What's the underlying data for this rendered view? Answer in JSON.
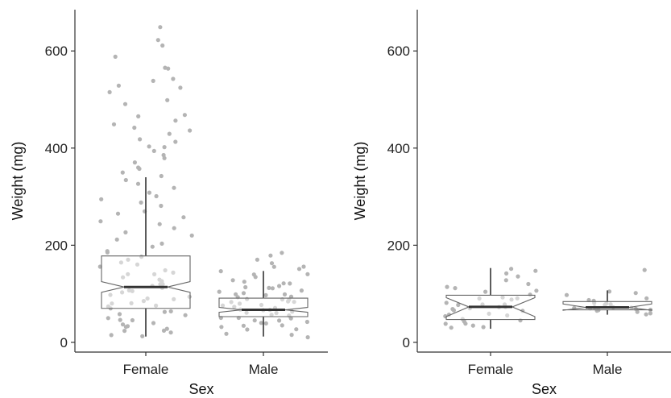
{
  "chart_data": [
    {
      "type": "box",
      "notched": true,
      "jittered_points": true,
      "xlabel": "Sex",
      "ylabel": "Weight (mg)",
      "ylim": [
        -20,
        685
      ],
      "yticks": [
        0,
        200,
        400,
        600
      ],
      "categories": [
        "Female",
        "Male"
      ],
      "boxes": [
        {
          "category": "Female",
          "q1": 70,
          "median": 114,
          "q3": 178,
          "notch_low": 103,
          "notch_high": 125,
          "whisker_low": 12,
          "whisker_high": 340
        },
        {
          "category": "Male",
          "q1": 53,
          "median": 67,
          "q3": 91,
          "notch_low": 62,
          "notch_high": 72,
          "whisker_low": 12,
          "whisker_high": 147
        }
      ],
      "points": {
        "Female": [
          648,
          625,
          612,
          590,
          567,
          563,
          541,
          537,
          530,
          526,
          515,
          498,
          490,
          470,
          465,
          455,
          448,
          442,
          436,
          428,
          420,
          412,
          405,
          400,
          392,
          385,
          378,
          370,
          362,
          355,
          348,
          340,
          333,
          325,
          318,
          310,
          302,
          295,
          288,
          280,
          272,
          265,
          258,
          250,
          243,
          236,
          228,
          220,
          212,
          205,
          198,
          190,
          184,
          178,
          172,
          166,
          160,
          155,
          150,
          146,
          142,
          138,
          134,
          130,
          126,
          122,
          118,
          115,
          112,
          108,
          105,
          102,
          98,
          95,
          92,
          88,
          85,
          82,
          78,
          75,
          72,
          68,
          65,
          62,
          58,
          55,
          52,
          48,
          45,
          42,
          38,
          35,
          32,
          28,
          25,
          22,
          18,
          15,
          12
        ],
        "Male": [
          185,
          178,
          170,
          162,
          158,
          155,
          150,
          146,
          142,
          138,
          134,
          130,
          127,
          124,
          121,
          118,
          115,
          112,
          110,
          108,
          105,
          103,
          101,
          99,
          97,
          95,
          93,
          91,
          89,
          87,
          85,
          83,
          81,
          79,
          77,
          75,
          73,
          71,
          69,
          67,
          65,
          63,
          61,
          59,
          57,
          55,
          53,
          51,
          49,
          47,
          45,
          43,
          41,
          39,
          36,
          33,
          30,
          27,
          24,
          20,
          16,
          12
        ]
      }
    },
    {
      "type": "box",
      "notched": true,
      "jittered_points": true,
      "xlabel": "Sex",
      "ylabel": "Weight (mg)",
      "ylim": [
        -20,
        685
      ],
      "yticks": [
        0,
        200,
        400,
        600
      ],
      "categories": [
        "Female",
        "Male"
      ],
      "boxes": [
        {
          "category": "Female",
          "q1": 47,
          "median": 73,
          "q3": 97,
          "notch_low": 53,
          "notch_high": 92,
          "whisker_low": 28,
          "whisker_high": 153
        },
        {
          "category": "Male",
          "q1": 67,
          "median": 72,
          "q3": 84,
          "notch_low": 66,
          "notch_high": 79,
          "whisker_low": 57,
          "whisker_high": 107
        }
      ],
      "points": {
        "Female": [
          153,
          148,
          140,
          135,
          128,
          120,
          115,
          110,
          106,
          102,
          98,
          95,
          92,
          89,
          86,
          83,
          80,
          77,
          75,
          73,
          71,
          69,
          67,
          65,
          63,
          61,
          58,
          55,
          52,
          49,
          46,
          43,
          40,
          37,
          34,
          31,
          28
        ],
        "Male": [
          147,
          107,
          100,
          96,
          92,
          88,
          85,
          82,
          80,
          78,
          76,
          74,
          73,
          72,
          71,
          70,
          69,
          68,
          67,
          65,
          63,
          60,
          58
        ]
      }
    }
  ]
}
